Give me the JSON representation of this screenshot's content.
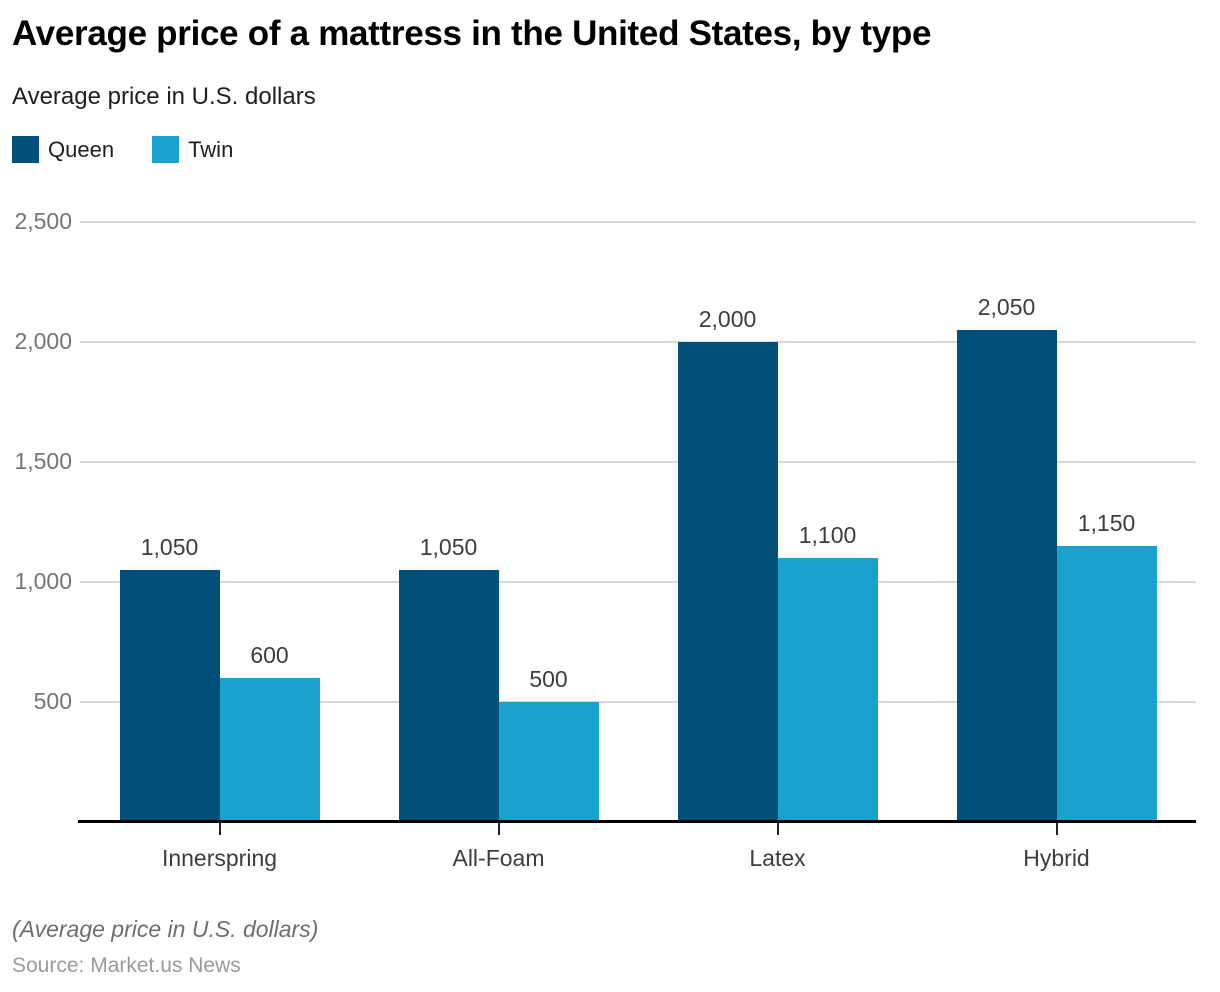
{
  "header": {
    "title": "Average price of a mattress in the United States, by type",
    "subtitle": "Average price in U.S. dollars"
  },
  "legend": {
    "items": [
      {
        "label": "Queen",
        "color": "#02507a"
      },
      {
        "label": "Twin",
        "color": "#1aa2cf"
      }
    ]
  },
  "chart_data": {
    "type": "bar",
    "title": "Average price of a mattress in the United States, by type",
    "subtitle": "Average price in U.S. dollars",
    "categories": [
      "Innerspring",
      "All-Foam",
      "Latex",
      "Hybrid"
    ],
    "series": [
      {
        "name": "Queen",
        "color": "#02507a",
        "values": [
          1050,
          1050,
          2000,
          2050
        ]
      },
      {
        "name": "Twin",
        "color": "#1aa2cf",
        "values": [
          600,
          500,
          1100,
          1150
        ]
      }
    ],
    "value_labels": [
      [
        "1,050",
        "1,050",
        "2,000",
        "2,050"
      ],
      [
        "600",
        "500",
        "1,100",
        "1,150"
      ]
    ],
    "yticks": [
      {
        "value": 500,
        "label": "500"
      },
      {
        "value": 1000,
        "label": "1,000"
      },
      {
        "value": 1500,
        "label": "1,500"
      },
      {
        "value": 2000,
        "label": "2,000"
      },
      {
        "value": 2500,
        "label": "2,500"
      }
    ],
    "ylim": [
      0,
      2500
    ],
    "grid": true,
    "legend_position": "top-left",
    "xlabel": "",
    "ylabel": ""
  },
  "colors": {
    "gridline": "#d9d9d9",
    "axis": "#000000",
    "tick_text": "#757575",
    "label_text": "#3d3d3d"
  },
  "footer": {
    "note": "(Average price in U.S. dollars)",
    "source": "Source: Market.us News"
  }
}
